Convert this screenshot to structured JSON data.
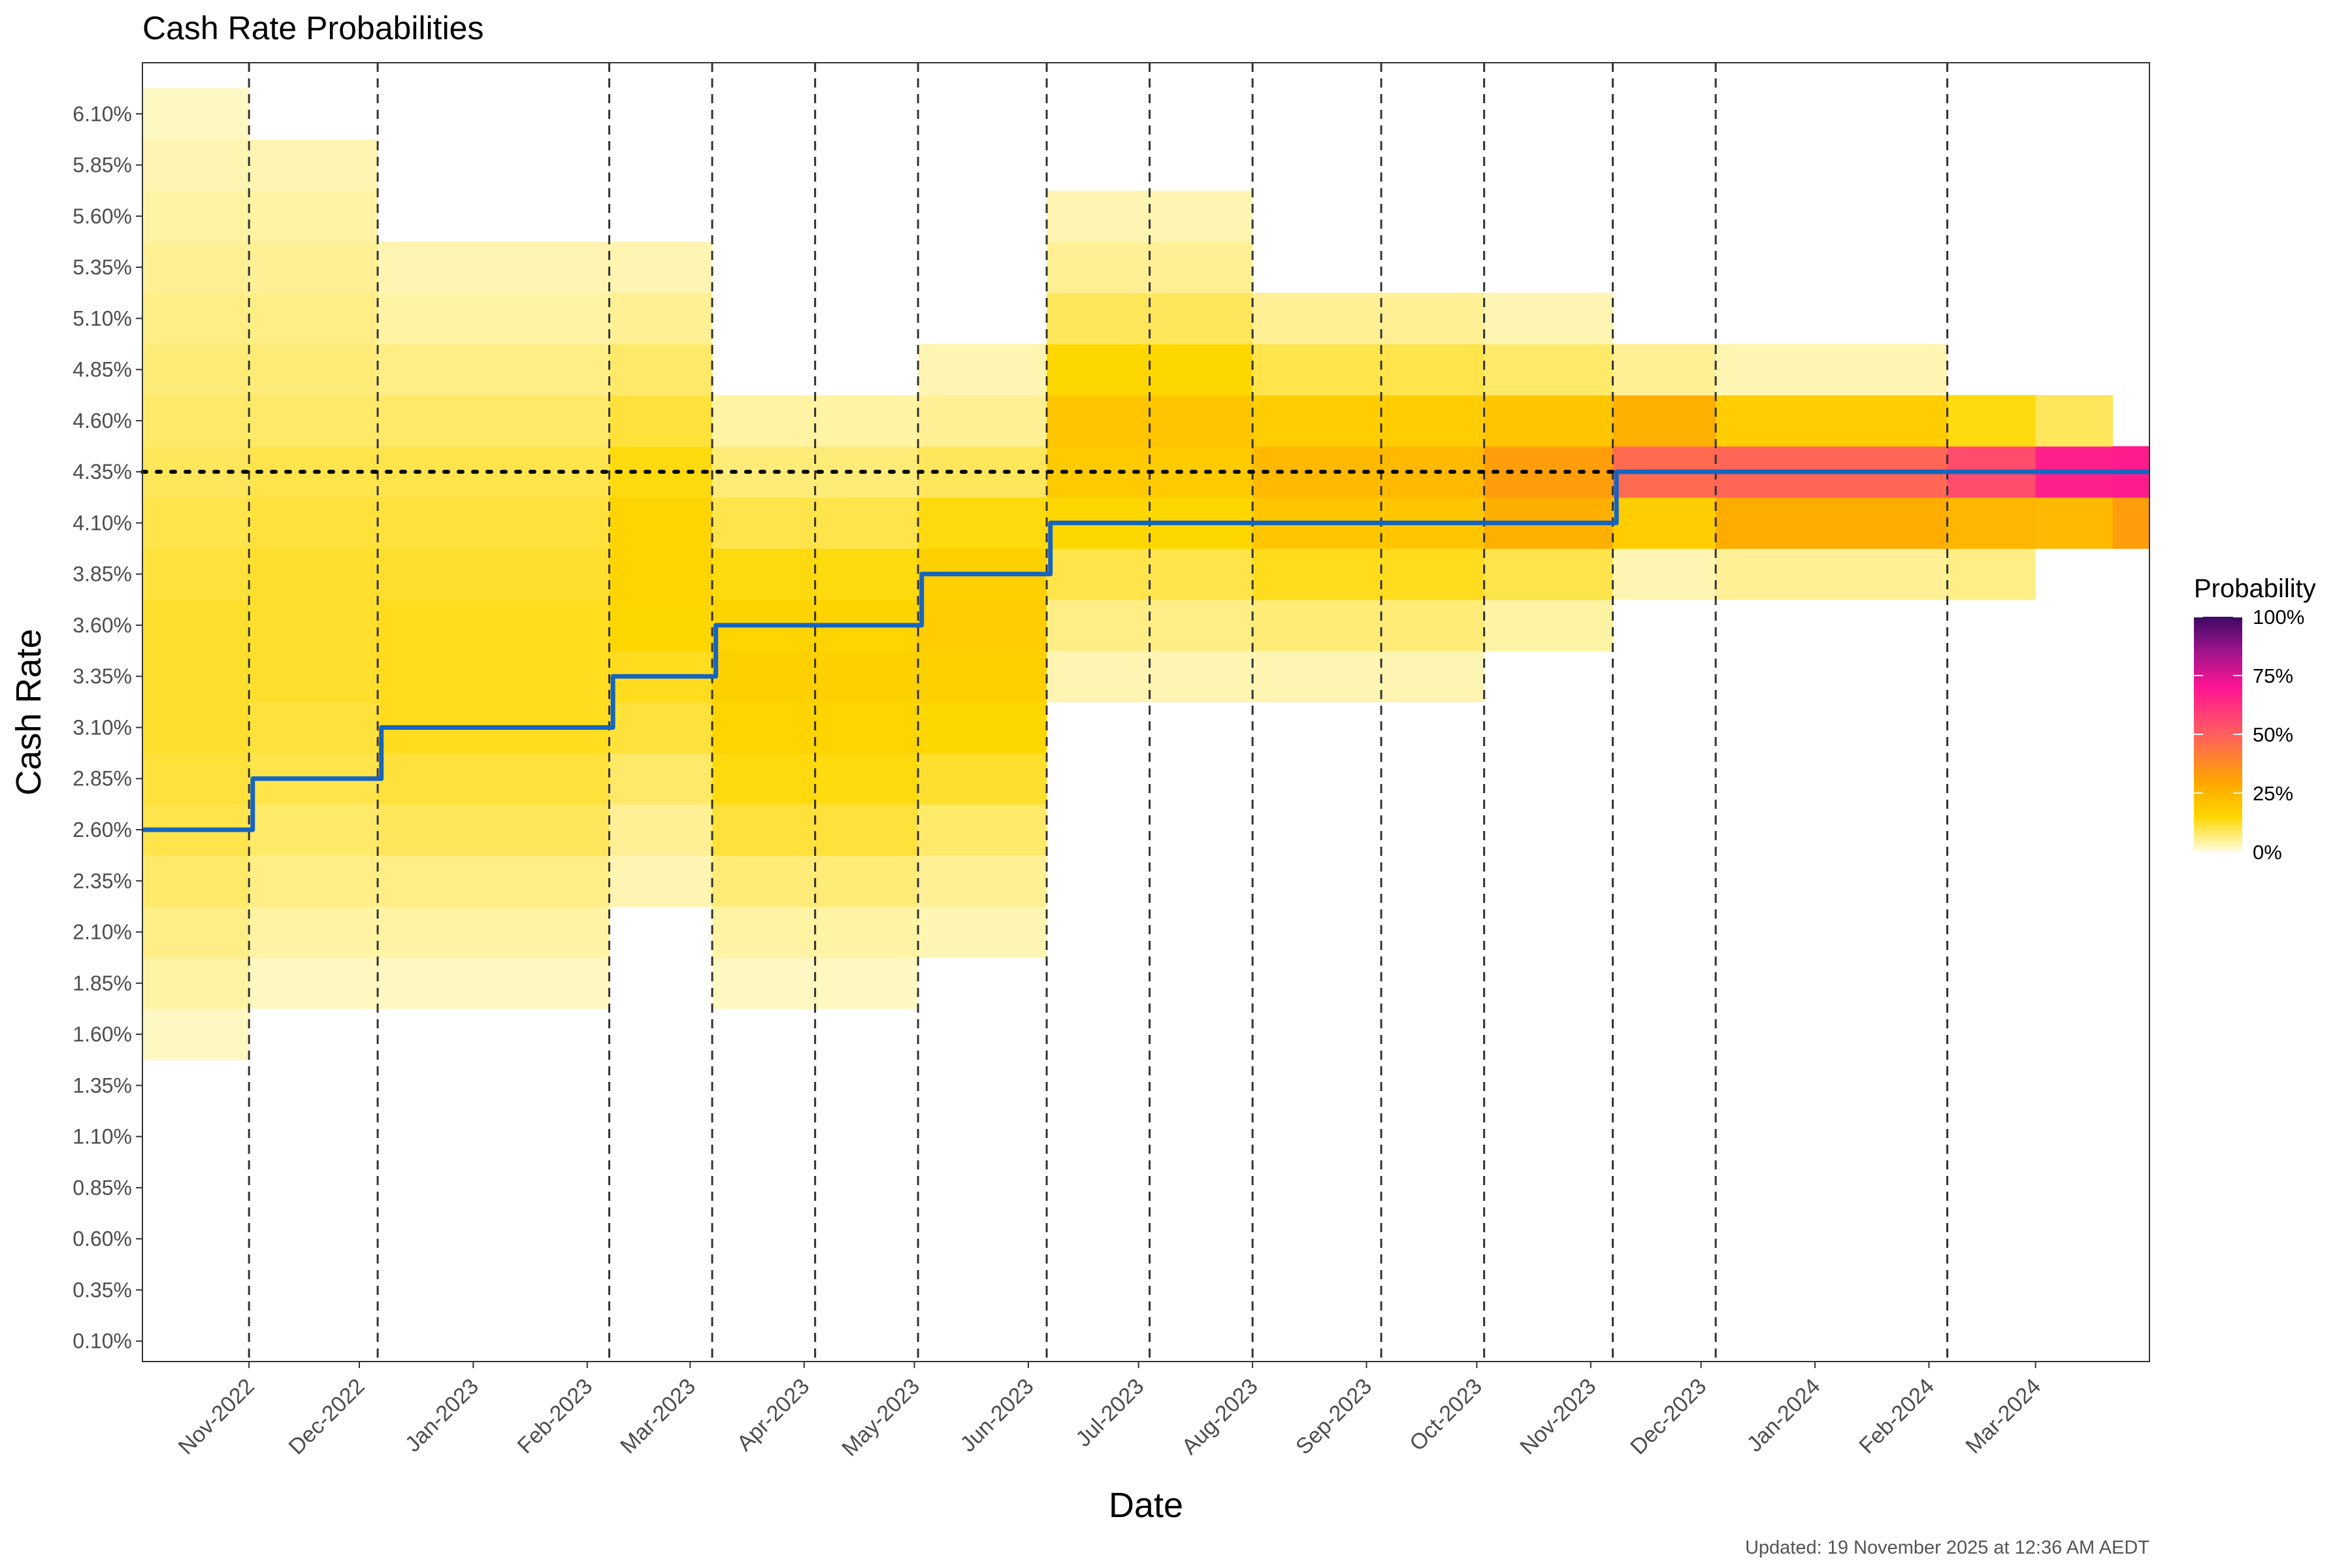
{
  "chart_data": {
    "type": "heatmap",
    "title": "Cash Rate Probabilities",
    "xlabel": "Date",
    "ylabel": "Cash Rate",
    "x_range": [
      "2022-10-03",
      "2024-04-01"
    ],
    "y_range": [
      0.0,
      6.35
    ],
    "y_ticks": [
      "0.10%",
      "0.35%",
      "0.60%",
      "0.85%",
      "1.10%",
      "1.35%",
      "1.60%",
      "1.85%",
      "2.10%",
      "2.35%",
      "2.60%",
      "2.85%",
      "3.10%",
      "3.35%",
      "3.60%",
      "3.85%",
      "4.10%",
      "4.35%",
      "4.60%",
      "4.85%",
      "5.10%",
      "5.35%",
      "5.60%",
      "5.85%",
      "6.10%"
    ],
    "x_ticks": [
      {
        "label": "Nov-2022",
        "date": "2022-11-01"
      },
      {
        "label": "Dec-2022",
        "date": "2022-12-01"
      },
      {
        "label": "Jan-2023",
        "date": "2023-01-01"
      },
      {
        "label": "Feb-2023",
        "date": "2023-02-01"
      },
      {
        "label": "Mar-2023",
        "date": "2023-03-01"
      },
      {
        "label": "Apr-2023",
        "date": "2023-04-01"
      },
      {
        "label": "May-2023",
        "date": "2023-05-01"
      },
      {
        "label": "Jun-2023",
        "date": "2023-06-01"
      },
      {
        "label": "Jul-2023",
        "date": "2023-07-01"
      },
      {
        "label": "Aug-2023",
        "date": "2023-08-01"
      },
      {
        "label": "Sep-2023",
        "date": "2023-09-01"
      },
      {
        "label": "Oct-2023",
        "date": "2023-10-01"
      },
      {
        "label": "Nov-2023",
        "date": "2023-11-01"
      },
      {
        "label": "Dec-2023",
        "date": "2023-12-01"
      },
      {
        "label": "Jan-2024",
        "date": "2024-01-01"
      },
      {
        "label": "Feb-2024",
        "date": "2024-02-01"
      },
      {
        "label": "Mar-2024",
        "date": "2024-03-01"
      }
    ],
    "meeting_dates": [
      "2022-11-01",
      "2022-12-06",
      "2023-02-07",
      "2023-03-07",
      "2023-04-04",
      "2023-05-02",
      "2023-06-06",
      "2023-07-04",
      "2023-08-01",
      "2023-09-05",
      "2023-10-03",
      "2023-11-07",
      "2023-12-05",
      "2024-02-06"
    ],
    "current_rate": 4.35,
    "cash_rate_series": {
      "dates": [
        "2022-10-03",
        "2022-11-02",
        "2022-12-07",
        "2023-02-08",
        "2023-03-08",
        "2023-05-03",
        "2023-06-07",
        "2023-11-08",
        "2024-04-01"
      ],
      "values": [
        2.6,
        2.85,
        3.1,
        3.35,
        3.6,
        3.85,
        4.1,
        4.35,
        4.35
      ]
    },
    "heatmap_periods": [
      {
        "from": "2022-10-03",
        "to": "2022-11-01",
        "probs": {
          "1.60": 2,
          "1.85": 4,
          "2.10": 6,
          "2.35": 8,
          "2.60": 10,
          "2.85": 11,
          "3.10": 12,
          "3.35": 12,
          "3.60": 12,
          "3.85": 11,
          "4.10": 10,
          "4.35": 9,
          "4.60": 8,
          "4.85": 7,
          "5.10": 6,
          "5.35": 5,
          "5.60": 4,
          "5.85": 3,
          "6.10": 2
        }
      },
      {
        "from": "2022-11-01",
        "to": "2022-12-06",
        "probs": {
          "1.85": 2,
          "2.10": 4,
          "2.35": 6,
          "2.60": 8,
          "2.85": 10,
          "3.10": 11,
          "3.35": 12,
          "3.60": 12,
          "3.85": 12,
          "4.10": 11,
          "4.35": 10,
          "4.60": 8,
          "4.85": 7,
          "5.10": 6,
          "5.35": 5,
          "5.60": 4,
          "5.85": 3
        }
      },
      {
        "from": "2022-12-06",
        "to": "2023-02-07",
        "probs": {
          "1.85": 2,
          "2.10": 4,
          "2.35": 6,
          "2.60": 9,
          "2.85": 11,
          "3.10": 13,
          "3.35": 13,
          "3.60": 13,
          "3.85": 12,
          "4.10": 11,
          "4.35": 10,
          "4.60": 8,
          "4.85": 6,
          "5.10": 4,
          "5.35": 3
        }
      },
      {
        "from": "2023-02-07",
        "to": "2023-03-07",
        "probs": {
          "2.35": 3,
          "2.60": 5,
          "2.85": 8,
          "3.10": 11,
          "3.35": 13,
          "3.60": 15,
          "3.85": 16,
          "4.10": 16,
          "4.35": 14,
          "4.60": 11,
          "4.85": 8,
          "5.10": 5,
          "5.35": 3
        }
      },
      {
        "from": "2023-03-07",
        "to": "2023-05-02",
        "probs": {
          "1.85": 2,
          "2.10": 4,
          "2.35": 7,
          "2.60": 11,
          "2.85": 14,
          "3.10": 16,
          "3.35": 17,
          "3.60": 16,
          "3.85": 14,
          "4.10": 10,
          "4.35": 7,
          "4.60": 4
        }
      },
      {
        "from": "2023-05-02",
        "to": "2023-06-06",
        "probs": {
          "2.10": 3,
          "2.35": 5,
          "2.60": 8,
          "2.85": 12,
          "3.10": 15,
          "3.35": 17,
          "3.60": 18,
          "3.85": 17,
          "4.10": 14,
          "4.35": 9,
          "4.60": 5,
          "4.85": 3
        }
      },
      {
        "from": "2023-06-06",
        "to": "2023-08-01",
        "probs": {
          "3.35": 3,
          "3.60": 6,
          "3.85": 10,
          "4.10": 15,
          "4.35": 19,
          "4.60": 20,
          "4.85": 15,
          "5.10": 9,
          "5.35": 5,
          "5.60": 3
        }
      },
      {
        "from": "2023-08-01",
        "to": "2023-10-03",
        "probs": {
          "3.35": 3,
          "3.60": 7,
          "3.85": 13,
          "4.10": 20,
          "4.35": 24,
          "4.60": 18,
          "4.85": 10,
          "5.10": 5
        }
      },
      {
        "from": "2023-10-03",
        "to": "2023-11-07",
        "probs": {
          "3.60": 4,
          "3.85": 10,
          "4.10": 27,
          "4.35": 32,
          "4.60": 20,
          "4.85": 8,
          "5.10": 3
        }
      },
      {
        "from": "2023-11-07",
        "to": "2023-12-05",
        "probs": {
          "3.85": 3,
          "4.10": 18,
          "4.35": 47,
          "4.60": 27,
          "4.85": 5
        }
      },
      {
        "from": "2023-12-05",
        "to": "2024-02-06",
        "probs": {
          "3.85": 5,
          "4.10": 28,
          "4.35": 48,
          "4.60": 18,
          "4.85": 3
        }
      },
      {
        "from": "2024-02-06",
        "to": "2024-03-01",
        "probs": {
          "3.85": 6,
          "4.10": 25,
          "4.35": 55,
          "4.60": 14
        }
      },
      {
        "from": "2024-03-01",
        "to": "2024-03-22",
        "probs": {
          "4.10": 24,
          "4.35": 67,
          "4.60": 9
        }
      },
      {
        "from": "2024-03-22",
        "to": "2024-04-01",
        "probs": {
          "4.10": 32,
          "4.35": 68
        }
      }
    ],
    "colorbar": {
      "title": "Probability",
      "labels": [
        "0%",
        "25%",
        "50%",
        "75%",
        "100%"
      ],
      "stops": [
        {
          "value": 0,
          "color": "#FFFDE0"
        },
        {
          "value": 0.15,
          "color": "#FFD700"
        },
        {
          "value": 0.3,
          "color": "#FFA500"
        },
        {
          "value": 0.5,
          "color": "#FF5F5F"
        },
        {
          "value": 0.7,
          "color": "#FF1493"
        },
        {
          "value": 0.85,
          "color": "#A0148C"
        },
        {
          "value": 1.0,
          "color": "#3D0965"
        }
      ]
    },
    "series_color": "#1565C0",
    "grid": false,
    "legend_position": "right",
    "caption": "Updated: 19 November 2025 at 12:36 AM AEDT"
  }
}
